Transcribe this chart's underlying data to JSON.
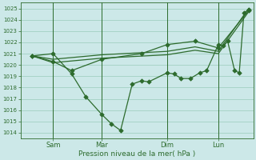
{
  "xlabel": "Pression niveau de la mer( hPa )",
  "background_color": "#cce8e8",
  "grid_color": "#99ccbb",
  "line_color": "#2d6b2d",
  "ylim": [
    1013.5,
    1025.5
  ],
  "yticks": [
    1014,
    1015,
    1016,
    1017,
    1018,
    1019,
    1020,
    1021,
    1022,
    1023,
    1024,
    1025
  ],
  "xlim": [
    0,
    100
  ],
  "vlines_x": [
    14,
    35,
    63,
    85
  ],
  "xtick_pos": [
    14,
    35,
    63,
    85
  ],
  "xtick_labels": [
    "Sam",
    "Mar",
    "Dim",
    "Lun"
  ],
  "series1": {
    "x": [
      5,
      14,
      22,
      28,
      35,
      39,
      43,
      48,
      52,
      55,
      63,
      66,
      69,
      73,
      77,
      80,
      85,
      87,
      89,
      92,
      94,
      96,
      98
    ],
    "y": [
      1020.8,
      1021.0,
      1019.2,
      1017.2,
      1015.6,
      1014.8,
      1014.2,
      1018.3,
      1018.6,
      1018.5,
      1019.3,
      1019.2,
      1018.8,
      1018.8,
      1019.3,
      1019.5,
      1021.8,
      1021.7,
      1022.1,
      1019.5,
      1019.3,
      1024.6,
      1024.9
    ]
  },
  "series2": {
    "x": [
      5,
      14,
      35,
      63,
      75,
      85,
      98
    ],
    "y": [
      1020.8,
      1020.5,
      1020.9,
      1021.2,
      1021.6,
      1021.2,
      1025.0
    ]
  },
  "series3": {
    "x": [
      5,
      14,
      35,
      63,
      75,
      85,
      98
    ],
    "y": [
      1020.8,
      1020.2,
      1020.6,
      1020.9,
      1021.3,
      1021.0,
      1024.7
    ]
  },
  "series4": {
    "x": [
      5,
      14,
      22,
      35,
      52,
      63,
      75,
      85,
      98
    ],
    "y": [
      1020.8,
      1020.3,
      1019.5,
      1020.5,
      1021.0,
      1021.8,
      1022.1,
      1021.5,
      1024.8
    ]
  }
}
